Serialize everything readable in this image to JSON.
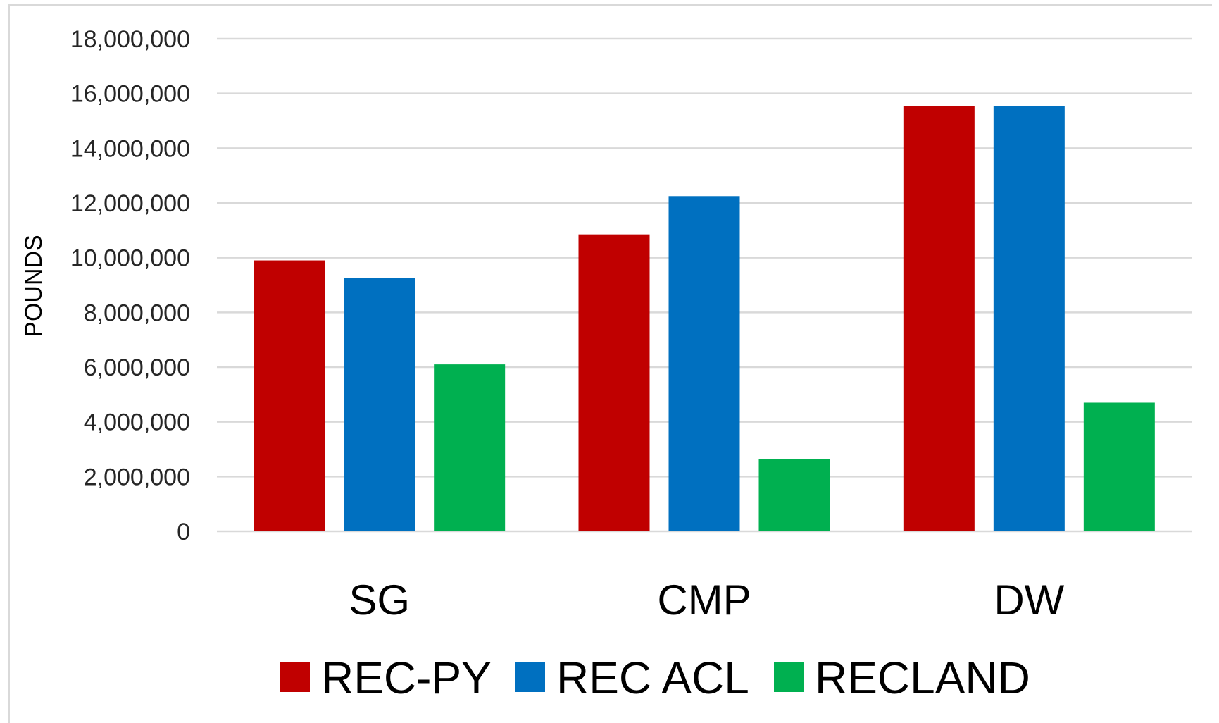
{
  "chart_data": {
    "type": "bar",
    "title": "",
    "xlabel": "",
    "ylabel": "POUNDS",
    "categories": [
      "SG",
      "CMP",
      "DW"
    ],
    "series": [
      {
        "name": "REC-PY",
        "color": "#c00000",
        "values": [
          9900000,
          10850000,
          15550000
        ]
      },
      {
        "name": "REC ACL",
        "color": "#0070c0",
        "values": [
          9250000,
          12250000,
          15550000
        ]
      },
      {
        "name": "RECLAND",
        "color": "#00b050",
        "values": [
          6100000,
          2650000,
          4700000
        ]
      }
    ],
    "ylim": [
      0,
      18000000
    ],
    "yticks": [
      0,
      2000000,
      4000000,
      6000000,
      8000000,
      10000000,
      12000000,
      14000000,
      16000000,
      18000000
    ],
    "ytick_labels": [
      "0",
      "2,000,000",
      "4,000,000",
      "6,000,000",
      "8,000,000",
      "10,000,000",
      "12,000,000",
      "14,000,000",
      "16,000,000",
      "18,000,000"
    ],
    "grid": true,
    "legend_position": "bottom"
  }
}
